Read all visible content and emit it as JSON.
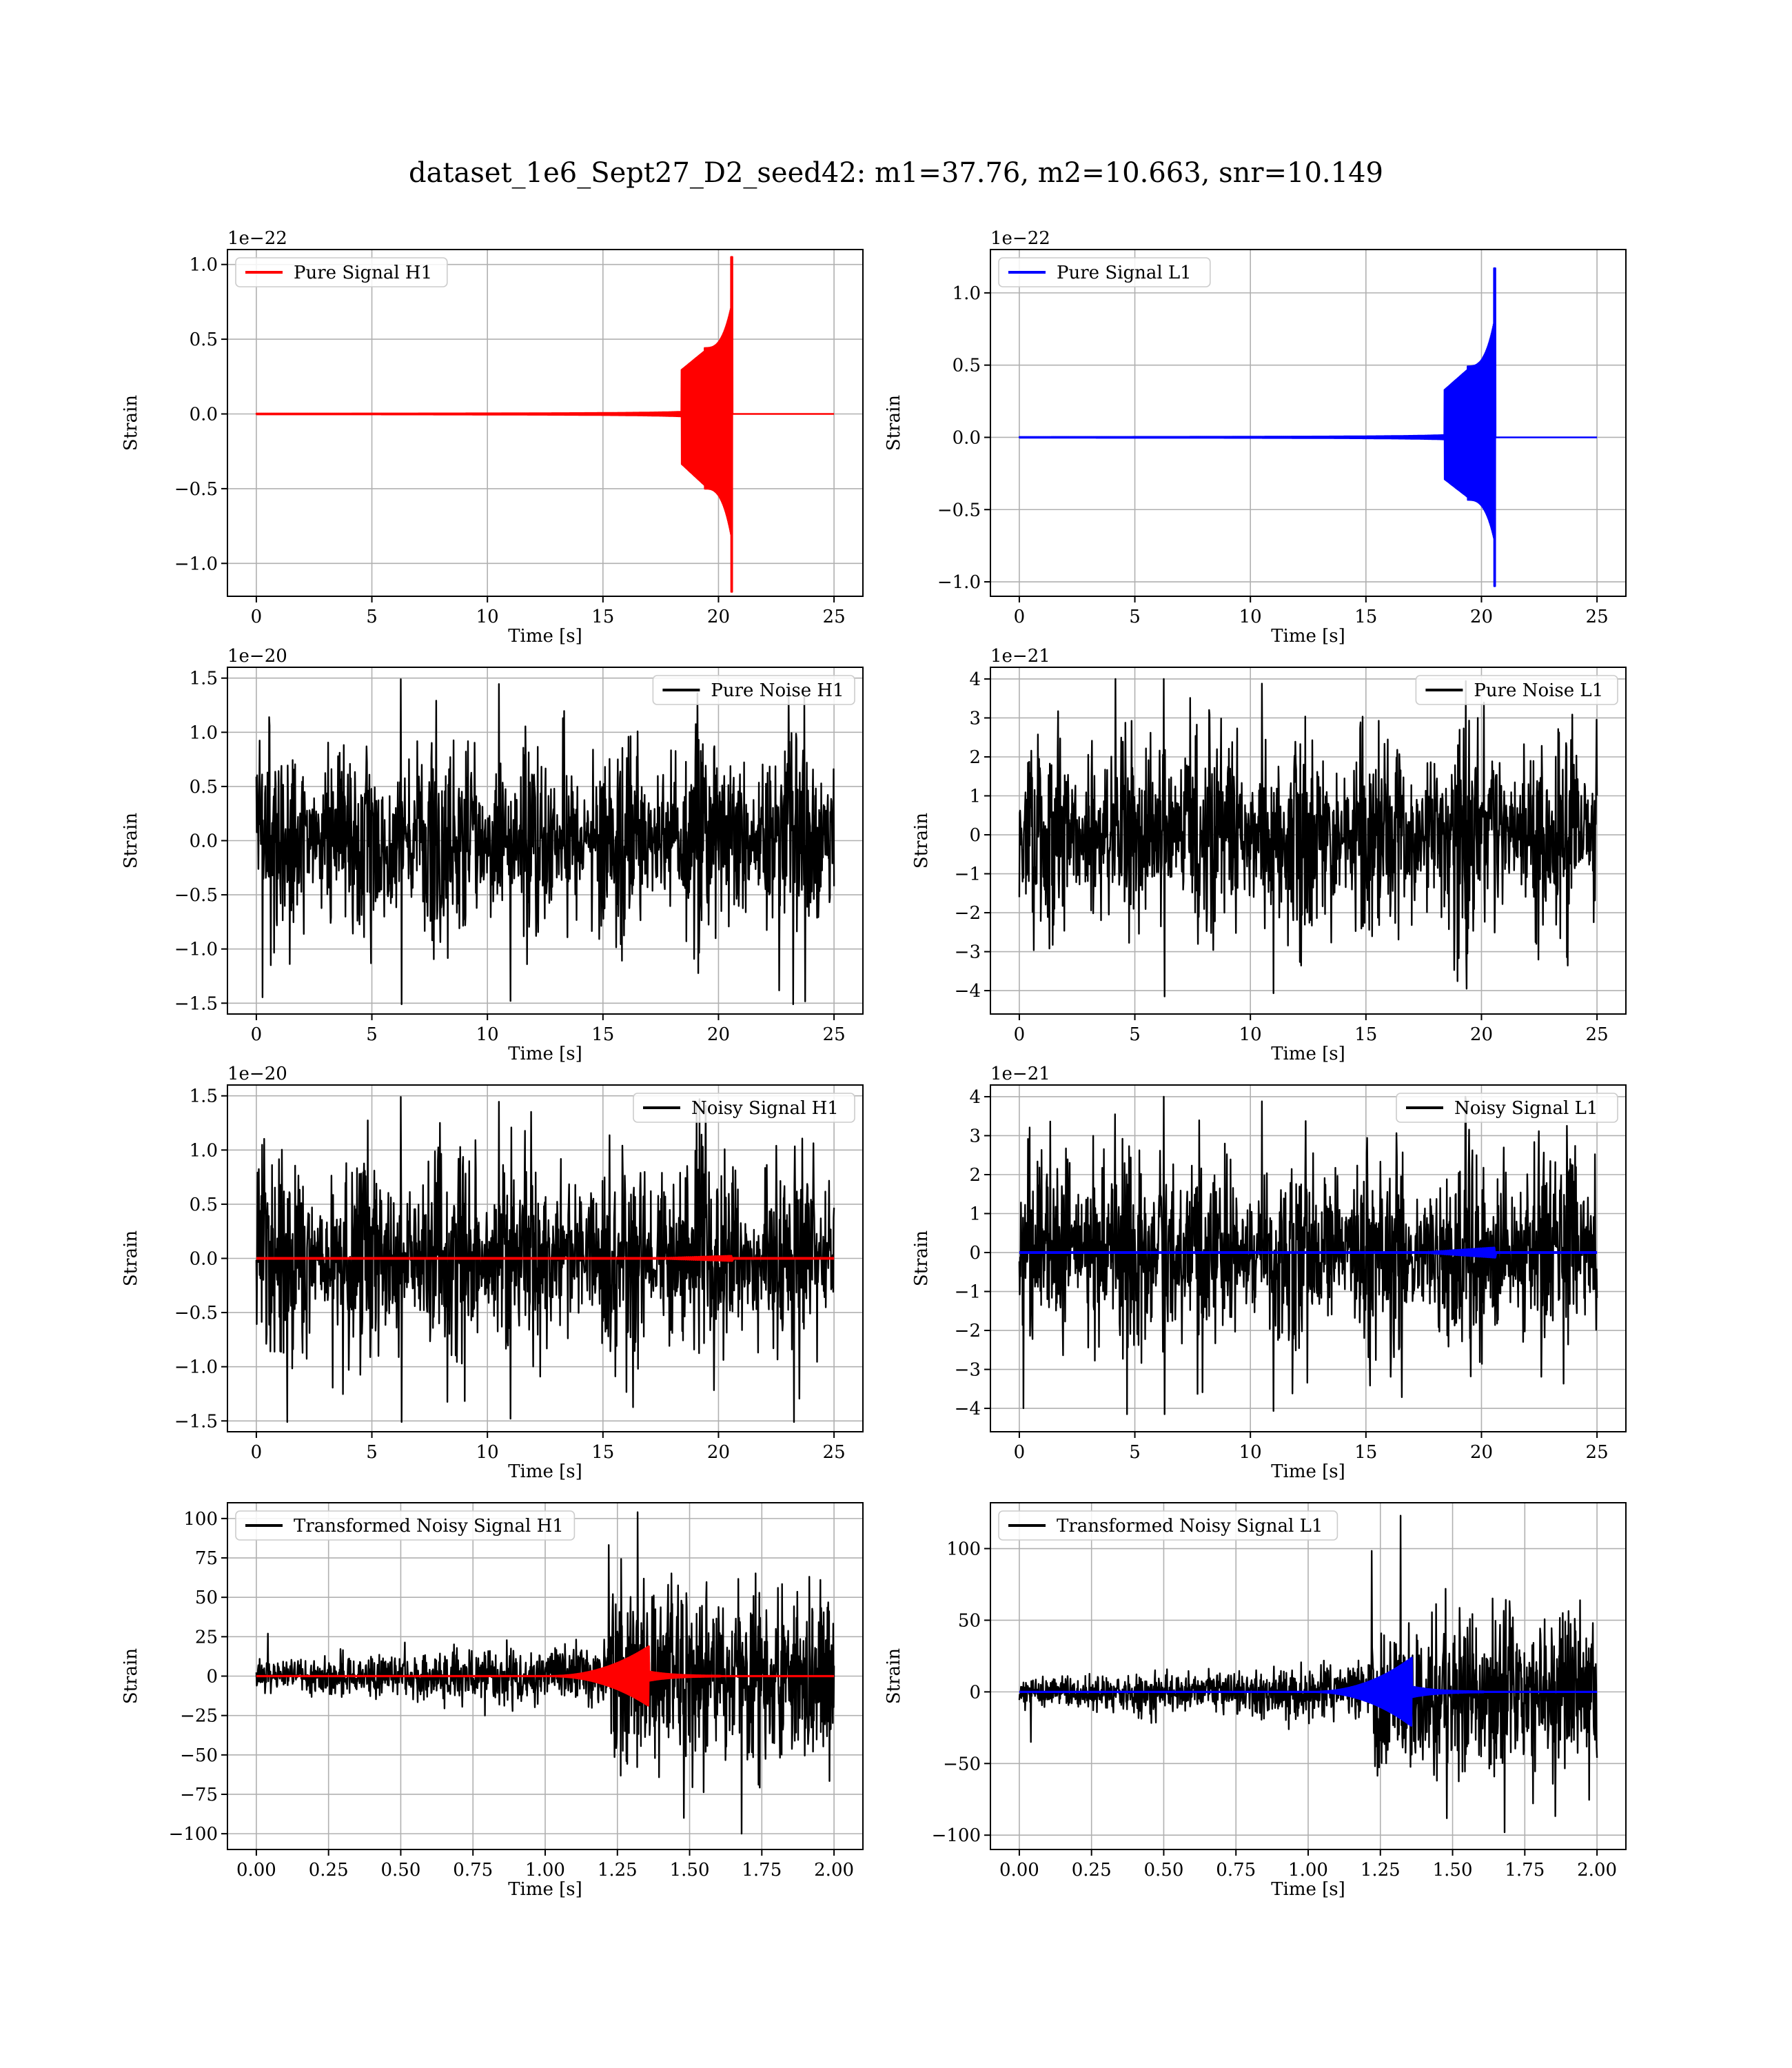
{
  "title": "dataset_1e6_Sept27_D2_seed42: m1=37.76, m2=10.663, snr=10.149",
  "colors": {
    "red": "#ff0000",
    "blue": "#0000ff",
    "black": "#000000",
    "grid": "#b0b0b0"
  },
  "chart_data": [
    {
      "type": "line",
      "legend": "Pure Signal H1",
      "legend_loc": "upper-left",
      "color": "#ff0000",
      "kind": "chirp",
      "xlabel": "Time [s]",
      "ylabel": "Strain",
      "offset_text": "1e−22",
      "xlim": [
        -1.25,
        26.25
      ],
      "ylim": [
        -1.22,
        1.1
      ],
      "xticks": [
        0,
        5,
        10,
        15,
        20,
        25
      ],
      "xtick_labels": [
        "0",
        "5",
        "10",
        "15",
        "20",
        "25"
      ],
      "yticks": [
        -1.0,
        -0.5,
        0.0,
        0.5,
        1.0
      ],
      "ytick_labels": [
        "−1.0",
        "−0.5",
        "0.0",
        "0.5",
        "1.0"
      ],
      "series": [
        {
          "x_range": [
            0,
            25
          ],
          "merger_time": 20.6,
          "peak_pos": 1.05,
          "peak_neg": -1.19,
          "color": "#ff0000"
        }
      ],
      "grid": true
    },
    {
      "type": "line",
      "legend": "Pure Signal L1",
      "legend_loc": "upper-left",
      "color": "#0000ff",
      "kind": "chirp",
      "xlabel": "Time [s]",
      "ylabel": "Strain",
      "offset_text": "1e−22",
      "xlim": [
        -1.25,
        26.25
      ],
      "ylim": [
        -1.1,
        1.3
      ],
      "xticks": [
        0,
        5,
        10,
        15,
        20,
        25
      ],
      "xtick_labels": [
        "0",
        "5",
        "10",
        "15",
        "20",
        "25"
      ],
      "yticks": [
        -1.0,
        -0.5,
        0.0,
        0.5,
        1.0
      ],
      "ytick_labels": [
        "−1.0",
        "−0.5",
        "0.0",
        "0.5",
        "1.0"
      ],
      "series": [
        {
          "x_range": [
            0,
            25
          ],
          "merger_time": 20.6,
          "peak_pos": 1.17,
          "peak_neg": -1.03,
          "color": "#0000ff"
        }
      ],
      "grid": true
    },
    {
      "type": "line",
      "legend": "Pure Noise H1",
      "legend_loc": "upper-right",
      "color": "#000000",
      "kind": "noise",
      "xlabel": "Time [s]",
      "ylabel": "Strain",
      "offset_text": "1e−20",
      "xlim": [
        -1.25,
        26.25
      ],
      "ylim": [
        -1.6,
        1.6
      ],
      "xticks": [
        0,
        5,
        10,
        15,
        20,
        25
      ],
      "xtick_labels": [
        "0",
        "5",
        "10",
        "15",
        "20",
        "25"
      ],
      "yticks": [
        -1.5,
        -1.0,
        -0.5,
        0.0,
        0.5,
        1.0,
        1.5
      ],
      "ytick_labels": [
        "−1.5",
        "−1.0",
        "−0.5",
        "0.0",
        "0.5",
        "1.0",
        "1.5"
      ],
      "series": [
        {
          "x_range": [
            0,
            25
          ],
          "max": 1.49,
          "min": -1.51,
          "color": "#000000"
        }
      ],
      "grid": true
    },
    {
      "type": "line",
      "legend": "Pure Noise L1",
      "legend_loc": "upper-right",
      "color": "#000000",
      "kind": "noise",
      "xlabel": "Time [s]",
      "ylabel": "Strain",
      "offset_text": "1e−21",
      "xlim": [
        -1.25,
        26.25
      ],
      "ylim": [
        -4.6,
        4.3
      ],
      "xticks": [
        0,
        5,
        10,
        15,
        20,
        25
      ],
      "xtick_labels": [
        "0",
        "5",
        "10",
        "15",
        "20",
        "25"
      ],
      "yticks": [
        -4,
        -3,
        -2,
        -1,
        0,
        1,
        2,
        3,
        4
      ],
      "ytick_labels": [
        "−4",
        "−3",
        "−2",
        "−1",
        "0",
        "1",
        "2",
        "3",
        "4"
      ],
      "series": [
        {
          "x_range": [
            0,
            25
          ],
          "max": 4.0,
          "min": -4.15,
          "color": "#000000"
        }
      ],
      "grid": true
    },
    {
      "type": "line",
      "legend": "Noisy Signal H1",
      "legend_loc": "upper-right",
      "color": "#000000",
      "kind": "noise-with-signal",
      "xlabel": "Time [s]",
      "ylabel": "Strain",
      "offset_text": "1e−20",
      "xlim": [
        -1.25,
        26.25
      ],
      "ylim": [
        -1.6,
        1.6
      ],
      "xticks": [
        0,
        5,
        10,
        15,
        20,
        25
      ],
      "xtick_labels": [
        "0",
        "5",
        "10",
        "15",
        "20",
        "25"
      ],
      "yticks": [
        -1.5,
        -1.0,
        -0.5,
        0.0,
        0.5,
        1.0,
        1.5
      ],
      "ytick_labels": [
        "−1.5",
        "−1.0",
        "−0.5",
        "0.0",
        "0.5",
        "1.0",
        "1.5"
      ],
      "series": [
        {
          "x_range": [
            0,
            25
          ],
          "max": 1.49,
          "min": -1.51,
          "color": "#000000"
        },
        {
          "x_range": [
            0,
            25
          ],
          "overlay_amp": 0.02,
          "merger_time": 20.6,
          "color": "#ff0000"
        }
      ],
      "grid": true
    },
    {
      "type": "line",
      "legend": "Noisy Signal L1",
      "legend_loc": "upper-right",
      "color": "#000000",
      "kind": "noise-with-signal",
      "xlabel": "Time [s]",
      "ylabel": "Strain",
      "offset_text": "1e−21",
      "xlim": [
        -1.25,
        26.25
      ],
      "ylim": [
        -4.6,
        4.3
      ],
      "xticks": [
        0,
        5,
        10,
        15,
        20,
        25
      ],
      "xtick_labels": [
        "0",
        "5",
        "10",
        "15",
        "20",
        "25"
      ],
      "yticks": [
        -4,
        -3,
        -2,
        -1,
        0,
        1,
        2,
        3,
        4
      ],
      "ytick_labels": [
        "−4",
        "−3",
        "−2",
        "−1",
        "0",
        "1",
        "2",
        "3",
        "4"
      ],
      "series": [
        {
          "x_range": [
            0,
            25
          ],
          "max": 4.0,
          "min": -4.15,
          "color": "#000000"
        },
        {
          "x_range": [
            0,
            25
          ],
          "overlay_amp": 0.12,
          "merger_time": 20.6,
          "color": "#0000ff"
        }
      ],
      "grid": true
    },
    {
      "type": "line",
      "legend": "Transformed Noisy Signal H1",
      "legend_loc": "upper-left",
      "color": "#000000",
      "kind": "transformed",
      "xlabel": "Time [s]",
      "ylabel": "Strain",
      "offset_text": "",
      "xlim": [
        -0.1,
        2.1
      ],
      "ylim": [
        -110,
        110
      ],
      "xticks": [
        0.0,
        0.25,
        0.5,
        0.75,
        1.0,
        1.25,
        1.5,
        1.75,
        2.0
      ],
      "xtick_labels": [
        "0.00",
        "0.25",
        "0.50",
        "0.75",
        "1.00",
        "1.25",
        "1.50",
        "1.75",
        "2.00"
      ],
      "yticks": [
        -100,
        -75,
        -50,
        -25,
        0,
        25,
        50,
        75,
        100
      ],
      "ytick_labels": [
        "−100",
        "−75",
        "−50",
        "−25",
        "0",
        "25",
        "50",
        "75",
        "100"
      ],
      "series": [
        {
          "x_range": [
            0,
            2.0
          ],
          "max": 104,
          "min": -100,
          "early_amp": 8,
          "late_start": 1.22,
          "late_amp": 60,
          "color": "#000000"
        },
        {
          "x_range": [
            0,
            2.0
          ],
          "merger_time": 1.36,
          "peak": 19,
          "color": "#ff0000"
        }
      ],
      "grid": true
    },
    {
      "type": "line",
      "legend": "Transformed Noisy Signal L1",
      "legend_loc": "upper-left",
      "color": "#000000",
      "kind": "transformed",
      "xlabel": "Time [s]",
      "ylabel": "Strain",
      "offset_text": "",
      "xlim": [
        -0.1,
        2.1
      ],
      "ylim": [
        -110,
        132
      ],
      "xticks": [
        0.0,
        0.25,
        0.5,
        0.75,
        1.0,
        1.25,
        1.5,
        1.75,
        2.0
      ],
      "xtick_labels": [
        "0.00",
        "0.25",
        "0.50",
        "0.75",
        "1.00",
        "1.25",
        "1.50",
        "1.75",
        "2.00"
      ],
      "yticks": [
        -100,
        -50,
        0,
        50,
        100
      ],
      "ytick_labels": [
        "−100",
        "−50",
        "0",
        "50",
        "100"
      ],
      "series": [
        {
          "x_range": [
            0,
            2.0
          ],
          "max": 123,
          "min": -98,
          "early_amp": 8,
          "late_start": 1.22,
          "late_amp": 60,
          "color": "#000000"
        },
        {
          "x_range": [
            0,
            2.0
          ],
          "merger_time": 1.36,
          "peak": 24,
          "color": "#0000ff"
        }
      ],
      "grid": true
    }
  ]
}
